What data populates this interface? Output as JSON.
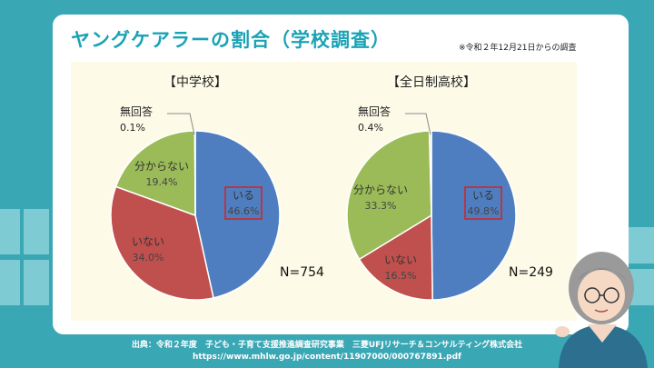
{
  "title": "ヤングケアラーの割合（学校調査）",
  "note": "※令和２年12月21日からの調査",
  "chart_data": [
    {
      "type": "pie",
      "title": "【中学校】",
      "n_label": "N=754",
      "slices": [
        {
          "label": "いる",
          "value": 46.6,
          "value_label": "46.6%",
          "color": "#4f7ec0",
          "highlight": true
        },
        {
          "label": "いない",
          "value": 34.0,
          "value_label": "34.0%",
          "color": "#c0504d",
          "highlight": false
        },
        {
          "label": "分からない",
          "value": 19.4,
          "value_label": "19.4%",
          "color": "#9bbb59",
          "highlight": false
        },
        {
          "label": "無回答",
          "value": 0.1,
          "value_label": "0.1%",
          "color": "#dddddd",
          "highlight": false
        }
      ]
    },
    {
      "type": "pie",
      "title": "【全日制高校】",
      "n_label": "N=249",
      "slices": [
        {
          "label": "いる",
          "value": 49.8,
          "value_label": "49.8%",
          "color": "#4f7ec0",
          "highlight": true
        },
        {
          "label": "いない",
          "value": 16.5,
          "value_label": "16.5%",
          "color": "#c0504d",
          "highlight": false
        },
        {
          "label": "分からない",
          "value": 33.3,
          "value_label": "33.3%",
          "color": "#9bbb59",
          "highlight": false
        },
        {
          "label": "無回答",
          "value": 0.4,
          "value_label": "0.4%",
          "color": "#dddddd",
          "highlight": false
        }
      ]
    }
  ],
  "footer": {
    "source": "出典：令和２年度　子ども・子育て支援推進調査研究事業　三菱UFJリサーチ＆コンサルティング株式会社",
    "url": "https://www.mhlw.go.jp/content/11907000/000767891.pdf"
  }
}
